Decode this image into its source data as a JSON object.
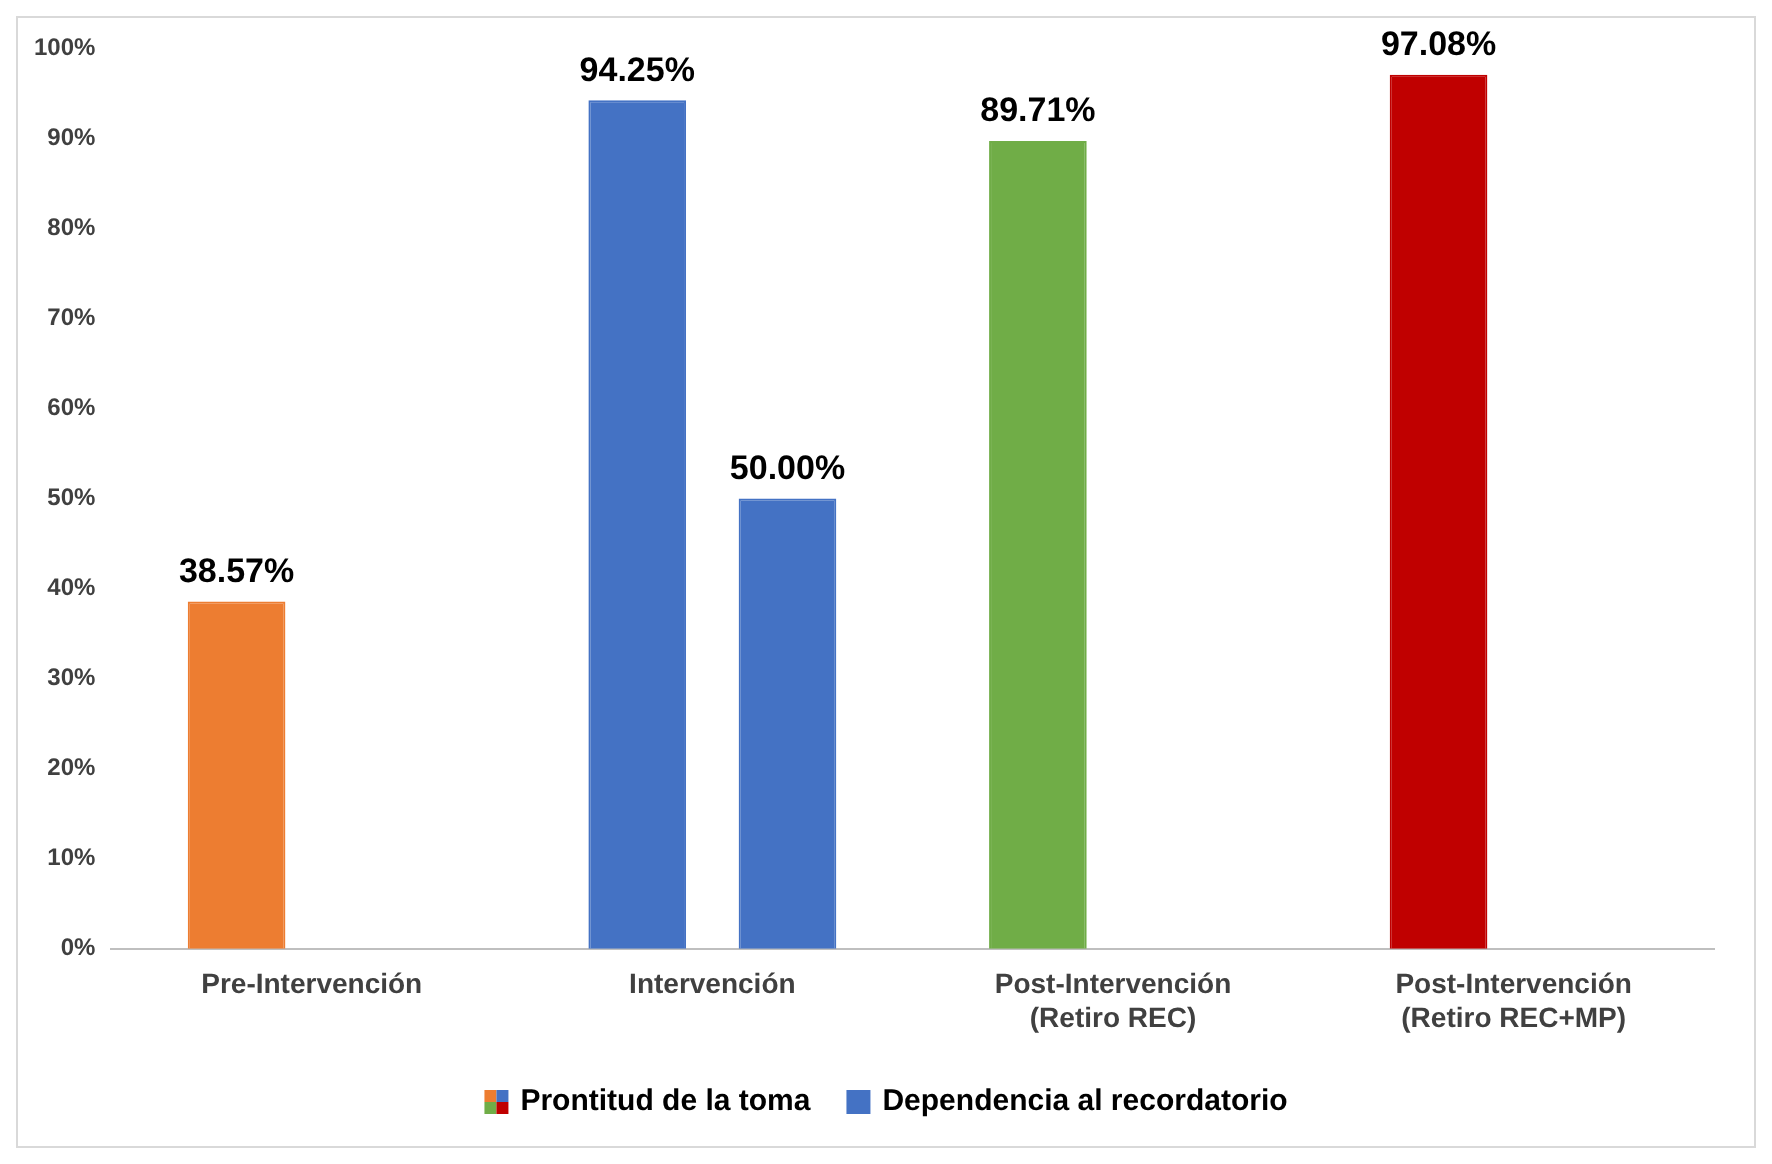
{
  "chart_data": {
    "type": "bar",
    "categories": [
      "Pre-Intervención",
      "Intervención",
      "Post-Intervención\n(Retiro REC)",
      "Post-Intervención\n(Retiro REC+MP)"
    ],
    "series": [
      {
        "name": "Prontitud de la toma",
        "colors": [
          "#ed7d31",
          "#4472c4",
          "#70ad47",
          "#c00000"
        ],
        "values": [
          38.57,
          94.25,
          89.71,
          97.08
        ],
        "value_labels": [
          "38.57%",
          "94.25%",
          "89.71%",
          "97.08%"
        ]
      },
      {
        "name": "Dependencia al recordatorio",
        "color": "#4472c4",
        "values": [
          null,
          50.0,
          null,
          null
        ],
        "value_labels": [
          null,
          "50.00%",
          null,
          null
        ]
      }
    ],
    "ylim": [
      0,
      100
    ],
    "yticks": [
      {
        "value": 0,
        "label": "0%"
      },
      {
        "value": 10,
        "label": "10%"
      },
      {
        "value": 20,
        "label": "20%"
      },
      {
        "value": 30,
        "label": "30%"
      },
      {
        "value": 40,
        "label": "40%"
      },
      {
        "value": 50,
        "label": "50%"
      },
      {
        "value": 60,
        "label": "60%"
      },
      {
        "value": 70,
        "label": "70%"
      },
      {
        "value": 80,
        "label": "80%"
      },
      {
        "value": 90,
        "label": "90%"
      },
      {
        "value": 100,
        "label": "100%"
      }
    ],
    "grid": false,
    "legend": "bottom"
  }
}
